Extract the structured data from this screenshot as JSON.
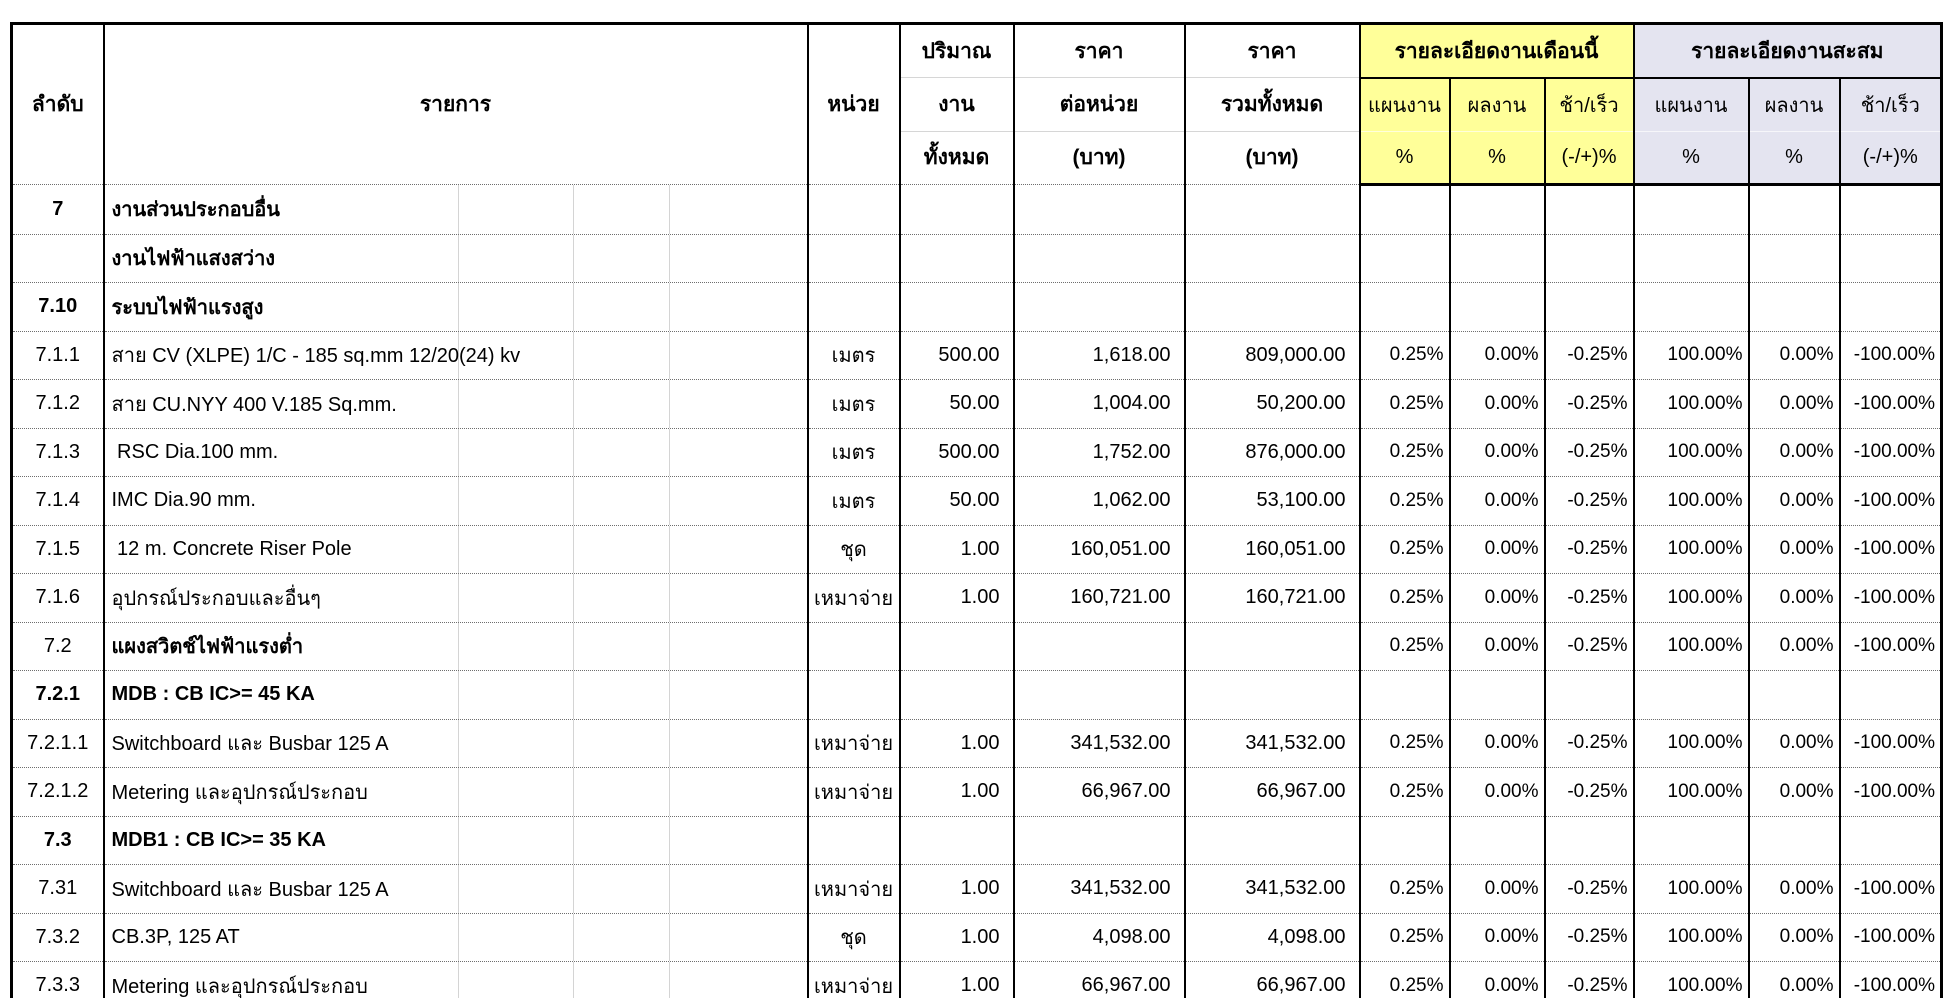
{
  "header": {
    "no": "ลำดับ",
    "desc": "รายการ",
    "unit": "หน่วย",
    "qty_lines": [
      "ปริมาณ",
      "งาน",
      "ทั้งหมด"
    ],
    "unit_price_lines": [
      "ราคา",
      "ต่อหน่วย",
      "(บาท)"
    ],
    "total_price_lines": [
      "ราคา",
      "รวมทั้งหมด",
      "(บาท)"
    ],
    "month": {
      "title": "รายละเอียดงานเดือนนี้",
      "bg": "#FFFF99",
      "subcols": [
        {
          "l1": "แผนงาน",
          "l2": "%"
        },
        {
          "l1": "ผลงาน",
          "l2": "%"
        },
        {
          "l1": "ช้า/เร็ว",
          "l2": "(-/+)%"
        }
      ]
    },
    "cumulative": {
      "title": "รายละเอียดงานสะสม",
      "bg": "#E4E4F0",
      "subcols": [
        {
          "l1": "แผนงาน",
          "l2": "%"
        },
        {
          "l1": "ผลงาน",
          "l2": "%"
        },
        {
          "l1": "ช้า/เร็ว",
          "l2": "(-/+)%"
        }
      ]
    }
  },
  "rows": [
    {
      "no": "7",
      "desc": "งานส่วนประกอบอื่น",
      "unit": "",
      "qty": "",
      "unit_price": "",
      "total": "",
      "mp": "",
      "ma": "",
      "md": "",
      "cp": "",
      "ca": "",
      "cd": "",
      "bold_no": true,
      "bold_desc": true
    },
    {
      "no": "",
      "desc": "งานไฟฟ้าแสงสว่าง",
      "unit": "",
      "qty": "",
      "unit_price": "",
      "total": "",
      "mp": "",
      "ma": "",
      "md": "",
      "cp": "",
      "ca": "",
      "cd": "",
      "bold_no": false,
      "bold_desc": true
    },
    {
      "no": "7.10",
      "desc": "ระบบไฟฟ้าแรงสูง",
      "unit": "",
      "qty": "",
      "unit_price": "",
      "total": "",
      "mp": "",
      "ma": "",
      "md": "",
      "cp": "",
      "ca": "",
      "cd": "",
      "bold_no": true,
      "bold_desc": true
    },
    {
      "no": "7.1.1",
      "desc": "สาย CV (XLPE) 1/C - 185 sq.mm 12/20(24) kv",
      "unit": "เมตร",
      "qty": "500.00",
      "unit_price": "1,618.00",
      "total": "809,000.00",
      "mp": "0.25%",
      "ma": "0.00%",
      "md": "-0.25%",
      "cp": "100.00%",
      "ca": "0.00%",
      "cd": "-100.00%",
      "bold_no": false,
      "bold_desc": false
    },
    {
      "no": "7.1.2",
      "desc": "สาย CU.NYY 400 V.185 Sq.mm.",
      "unit": "เมตร",
      "qty": "50.00",
      "unit_price": "1,004.00",
      "total": "50,200.00",
      "mp": "0.25%",
      "ma": "0.00%",
      "md": "-0.25%",
      "cp": "100.00%",
      "ca": "0.00%",
      "cd": "-100.00%",
      "bold_no": false,
      "bold_desc": false
    },
    {
      "no": "7.1.3",
      "desc": " RSC Dia.100 mm.",
      "unit": "เมตร",
      "qty": "500.00",
      "unit_price": "1,752.00",
      "total": "876,000.00",
      "mp": "0.25%",
      "ma": "0.00%",
      "md": "-0.25%",
      "cp": "100.00%",
      "ca": "0.00%",
      "cd": "-100.00%",
      "bold_no": false,
      "bold_desc": false
    },
    {
      "no": "7.1.4",
      "desc": "IMC Dia.90 mm.",
      "unit": "เมตร",
      "qty": "50.00",
      "unit_price": "1,062.00",
      "total": "53,100.00",
      "mp": "0.25%",
      "ma": "0.00%",
      "md": "-0.25%",
      "cp": "100.00%",
      "ca": "0.00%",
      "cd": "-100.00%",
      "bold_no": false,
      "bold_desc": false
    },
    {
      "no": "7.1.5",
      "desc": " 12 m. Concrete Riser Pole",
      "unit": "ชุด",
      "qty": "1.00",
      "unit_price": "160,051.00",
      "total": "160,051.00",
      "mp": "0.25%",
      "ma": "0.00%",
      "md": "-0.25%",
      "cp": "100.00%",
      "ca": "0.00%",
      "cd": "-100.00%",
      "bold_no": false,
      "bold_desc": false
    },
    {
      "no": "7.1.6",
      "desc": "อุปกรณ์ประกอบและอื่นๆ",
      "unit": "เหมาจ่าย",
      "qty": "1.00",
      "unit_price": "160,721.00",
      "total": "160,721.00",
      "mp": "0.25%",
      "ma": "0.00%",
      "md": "-0.25%",
      "cp": "100.00%",
      "ca": "0.00%",
      "cd": "-100.00%",
      "bold_no": false,
      "bold_desc": false
    },
    {
      "no": "7.2",
      "desc": "แผงสวิตช์ไฟฟ้าแรงต่ำ",
      "unit": "",
      "qty": "",
      "unit_price": "",
      "total": "",
      "mp": "0.25%",
      "ma": "0.00%",
      "md": "-0.25%",
      "cp": "100.00%",
      "ca": "0.00%",
      "cd": "-100.00%",
      "bold_no": false,
      "bold_desc": true
    },
    {
      "no": "7.2.1",
      "desc": "MDB : CB IC>= 45 KA",
      "unit": "",
      "qty": "",
      "unit_price": "",
      "total": "",
      "mp": "",
      "ma": "",
      "md": "",
      "cp": "",
      "ca": "",
      "cd": "",
      "bold_no": true,
      "bold_desc": true
    },
    {
      "no": "7.2.1.1",
      "desc": "Switchboard และ Busbar 125 A",
      "unit": "เหมาจ่าย",
      "qty": "1.00",
      "unit_price": "341,532.00",
      "total": "341,532.00",
      "mp": "0.25%",
      "ma": "0.00%",
      "md": "-0.25%",
      "cp": "100.00%",
      "ca": "0.00%",
      "cd": "-100.00%",
      "bold_no": false,
      "bold_desc": false
    },
    {
      "no": "7.2.1.2",
      "desc": "Metering และอุปกรณ์ประกอบ",
      "unit": "เหมาจ่าย",
      "qty": "1.00",
      "unit_price": "66,967.00",
      "total": "66,967.00",
      "mp": "0.25%",
      "ma": "0.00%",
      "md": "-0.25%",
      "cp": "100.00%",
      "ca": "0.00%",
      "cd": "-100.00%",
      "bold_no": false,
      "bold_desc": false
    },
    {
      "no": "7.3",
      "desc": "MDB1 : CB IC>= 35 KA",
      "unit": "",
      "qty": "",
      "unit_price": "",
      "total": "",
      "mp": "",
      "ma": "",
      "md": "",
      "cp": "",
      "ca": "",
      "cd": "",
      "bold_no": true,
      "bold_desc": true
    },
    {
      "no": "7.31",
      "desc": "Switchboard และ Busbar 125 A",
      "unit": "เหมาจ่าย",
      "qty": "1.00",
      "unit_price": "341,532.00",
      "total": "341,532.00",
      "mp": "0.25%",
      "ma": "0.00%",
      "md": "-0.25%",
      "cp": "100.00%",
      "ca": "0.00%",
      "cd": "-100.00%",
      "bold_no": false,
      "bold_desc": false
    },
    {
      "no": "7.3.2",
      "desc": "CB.3P, 125 AT",
      "unit": "ชุด",
      "qty": "1.00",
      "unit_price": "4,098.00",
      "total": "4,098.00",
      "mp": "0.25%",
      "ma": "0.00%",
      "md": "-0.25%",
      "cp": "100.00%",
      "ca": "0.00%",
      "cd": "-100.00%",
      "bold_no": false,
      "bold_desc": false
    },
    {
      "no": "7.3.3",
      "desc": "Metering และอุปกรณ์ประกอบ",
      "unit": "เหมาจ่าย",
      "qty": "1.00",
      "unit_price": "66,967.00",
      "total": "66,967.00",
      "mp": "0.25%",
      "ma": "0.00%",
      "md": "-0.25%",
      "cp": "100.00%",
      "ca": "0.00%",
      "cd": "-100.00%",
      "bold_no": false,
      "bold_desc": false
    }
  ]
}
